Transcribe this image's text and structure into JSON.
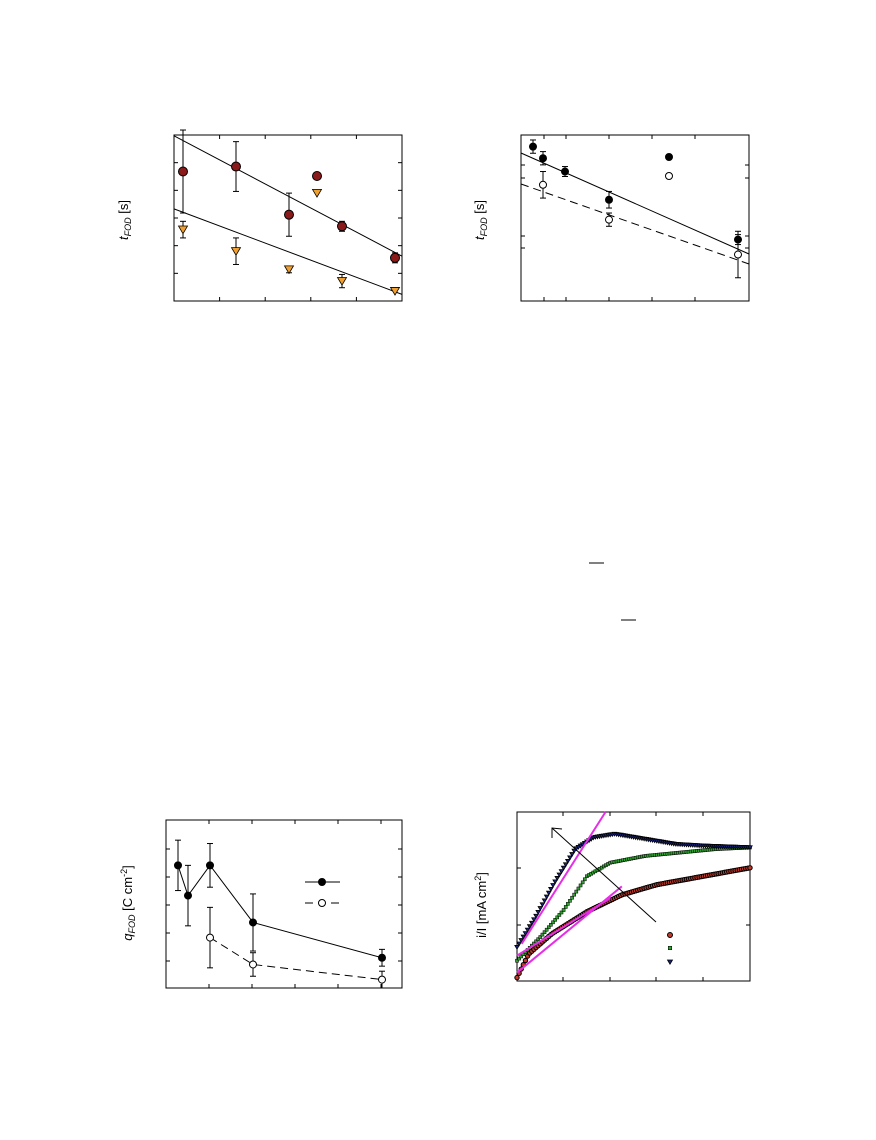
{
  "chart_data": [
    {
      "type": "scatter",
      "ylabel": {
        "main": "t",
        "sub": "FOD",
        "unit": " [s]"
      },
      "x": [
        1,
        2,
        3,
        4,
        5
      ],
      "series": [
        {
          "marker": "circle",
          "color": "#8b1a1a",
          "values": [
            0.78,
            0.81,
            0.52,
            0.45,
            0.26
          ],
          "errors": [
            0.25,
            0.15,
            0.13,
            0.03,
            0.03
          ],
          "fit": [
            0.89,
            0.27
          ]
        },
        {
          "marker": "triangle",
          "color": "#f0a030",
          "values": [
            0.43,
            0.3,
            0.19,
            0.12,
            0.06
          ],
          "errors": [
            0.05,
            0.08,
            0.02,
            0.04,
            0.0
          ],
          "fit": [
            0.48,
            0.04
          ]
        }
      ],
      "legend": [
        {
          "marker": "circle",
          "color": "#8b1a1a"
        },
        {
          "marker": "triangle",
          "color": "#f0a030"
        }
      ],
      "grid": false
    },
    {
      "type": "scatter",
      "ylabel": {
        "main": "t",
        "sub": "FOD",
        "unit": " [s]"
      },
      "x": [
        1,
        2,
        3,
        5,
        10
      ],
      "series": [
        {
          "marker": "filled-circle",
          "color": "#000000",
          "line": "solid",
          "values": [
            0.93,
            0.86,
            0.78,
            0.61,
            0.37
          ],
          "errors": [
            0.04,
            0.04,
            0.03,
            0.05,
            0.03
          ]
        },
        {
          "marker": "open-circle",
          "color": "#000000",
          "line": "dashed",
          "values": [
            null,
            0.7,
            null,
            0.49,
            0.28
          ],
          "errors": [
            0,
            0.08,
            0,
            0.04,
            0.14
          ]
        }
      ],
      "legend": [
        {
          "marker": "filled-circle"
        },
        {
          "marker": "open-circle"
        }
      ],
      "grid": false
    },
    {
      "type": "line",
      "ylabel": {
        "main": "q",
        "sub": "FOD",
        "unit": " [C cm",
        "sup": "-2",
        "end": "]"
      },
      "series": [
        {
          "marker": "filled-circle",
          "line": "solid",
          "x": [
            1,
            1.5,
            2.4,
            4.5,
            10
          ],
          "values": [
            0.73,
            0.55,
            0.73,
            0.39,
            0.18
          ],
          "errors": [
            0.15,
            0.18,
            0.13,
            0.17,
            0.05
          ]
        },
        {
          "marker": "open-circle",
          "line": "dashed",
          "x": [
            2.4,
            4.5,
            10
          ],
          "values": [
            0.3,
            0.14,
            0.05
          ],
          "errors": [
            0.18,
            0.07,
            0.05
          ]
        }
      ],
      "legend": [
        {
          "marker": "filled-circle",
          "line": "solid"
        },
        {
          "marker": "open-circle",
          "line": "dashed"
        }
      ],
      "grid": false
    },
    {
      "type": "scatter",
      "ylabel": {
        "main": "I",
        "sub": "",
        "unit": "i/I [mA cm",
        "sup": "2",
        "end": "]"
      },
      "series": [
        {
          "marker": "circle",
          "color": "#c0392b",
          "curve": [
            [
              0,
              0.02
            ],
            [
              0.05,
              0.16
            ],
            [
              0.15,
              0.28
            ],
            [
              0.3,
              0.41
            ],
            [
              0.45,
              0.51
            ],
            [
              0.6,
              0.57
            ],
            [
              0.8,
              0.62
            ],
            [
              1.0,
              0.67
            ]
          ]
        },
        {
          "marker": "square",
          "color": "#2ea02e",
          "curve": [
            [
              0,
              0.12
            ],
            [
              0.1,
              0.26
            ],
            [
              0.2,
              0.42
            ],
            [
              0.3,
              0.62
            ],
            [
              0.4,
              0.7
            ],
            [
              0.55,
              0.74
            ],
            [
              0.7,
              0.76
            ],
            [
              0.85,
              0.78
            ],
            [
              1.0,
              0.79
            ]
          ]
        },
        {
          "marker": "triangle",
          "color": "#1a237e",
          "curve": [
            [
              0,
              0.2
            ],
            [
              0.08,
              0.38
            ],
            [
              0.16,
              0.58
            ],
            [
              0.25,
              0.78
            ],
            [
              0.33,
              0.85
            ],
            [
              0.42,
              0.87
            ],
            [
              0.55,
              0.84
            ],
            [
              0.68,
              0.81
            ],
            [
              0.8,
              0.8
            ],
            [
              1.0,
              0.79
            ]
          ]
        }
      ],
      "fits": [
        {
          "color": "#e62ee6",
          "from": [
            0.0,
            0.15
          ],
          "to": [
            0.4,
            0.49
          ]
        },
        {
          "color": "#e62ee6",
          "from": [
            0.0,
            0.05
          ],
          "to": [
            0.45,
            0.56
          ]
        },
        {
          "color": "#e62ee6",
          "from": [
            0.02,
            0.22
          ],
          "to": [
            0.38,
            1.0
          ]
        }
      ],
      "legend": [
        {
          "marker": "circle",
          "color": "#c0392b"
        },
        {
          "marker": "square",
          "color": "#2ea02e"
        },
        {
          "marker": "triangle",
          "color": "#1a237e"
        }
      ],
      "grid": false
    }
  ],
  "fragments": {
    "minus_marks": 2
  }
}
